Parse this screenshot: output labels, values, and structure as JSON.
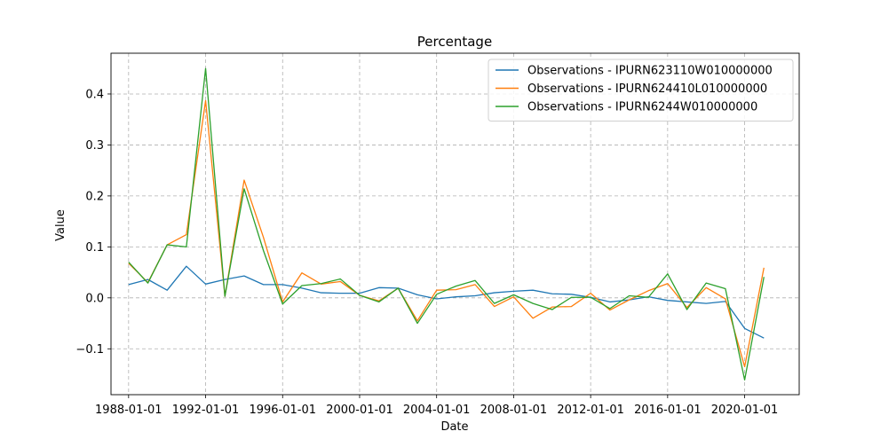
{
  "chart_data": {
    "type": "line",
    "title": "Percentage",
    "xlabel": "Date",
    "ylabel": "Value",
    "x_tick_labels": [
      "1988-01-01",
      "1992-01-01",
      "1996-01-01",
      "2000-01-01",
      "2004-01-01",
      "2008-01-01",
      "2012-01-01",
      "2016-01-01",
      "2020-01-01"
    ],
    "y_ticks": [
      -0.1,
      0.0,
      0.1,
      0.2,
      0.3,
      0.4
    ],
    "y_tick_labels": [
      "−0.1",
      "0.0",
      "0.1",
      "0.2",
      "0.3",
      "0.4"
    ],
    "xlim": [
      "1987-02-01",
      "2022-11-01"
    ],
    "ylim": [
      -0.19,
      0.48
    ],
    "grid": true,
    "legend_position": "top-right",
    "x": [
      "1988-01-01",
      "1989-01-01",
      "1990-01-01",
      "1991-01-01",
      "1992-01-01",
      "1993-01-01",
      "1994-01-01",
      "1995-01-01",
      "1996-01-01",
      "1997-01-01",
      "1998-01-01",
      "1999-01-01",
      "2000-01-01",
      "2001-01-01",
      "2002-01-01",
      "2003-01-01",
      "2004-01-01",
      "2005-01-01",
      "2006-01-01",
      "2007-01-01",
      "2008-01-01",
      "2009-01-01",
      "2010-01-01",
      "2011-01-01",
      "2012-01-01",
      "2013-01-01",
      "2014-01-01",
      "2015-01-01",
      "2016-01-01",
      "2017-01-01",
      "2018-01-01",
      "2019-01-01",
      "2020-01-01",
      "2021-01-01"
    ],
    "series": [
      {
        "name": "Observations - IPURN623110W010000000",
        "color": "#1f77b4",
        "values": [
          0.026,
          0.036,
          0.015,
          0.062,
          0.027,
          0.036,
          0.043,
          0.026,
          0.026,
          0.019,
          0.01,
          0.009,
          0.009,
          0.02,
          0.019,
          0.006,
          -0.002,
          0.002,
          0.004,
          0.01,
          0.013,
          0.015,
          0.008,
          0.007,
          0.001,
          -0.008,
          -0.004,
          0.002,
          -0.005,
          -0.008,
          -0.011,
          -0.007,
          -0.06,
          -0.079
        ]
      },
      {
        "name": "Observations - IPURN624410L010000000",
        "color": "#ff7f0e",
        "values": [
          0.068,
          0.03,
          0.104,
          0.124,
          0.387,
          0.003,
          0.231,
          0.119,
          -0.008,
          0.049,
          0.027,
          0.032,
          0.005,
          -0.006,
          0.019,
          -0.045,
          0.015,
          0.016,
          0.026,
          -0.017,
          0.002,
          -0.04,
          -0.018,
          -0.017,
          0.009,
          -0.024,
          -0.004,
          0.014,
          0.028,
          -0.019,
          0.02,
          -0.002,
          -0.135,
          0.059
        ]
      },
      {
        "name": "Observations - IPURN6244W010000000",
        "color": "#2ca02c",
        "values": [
          0.07,
          0.029,
          0.104,
          0.1,
          0.45,
          0.003,
          0.214,
          0.093,
          -0.012,
          0.024,
          0.028,
          0.037,
          0.005,
          -0.008,
          0.019,
          -0.05,
          0.007,
          0.023,
          0.034,
          -0.011,
          0.006,
          -0.011,
          -0.023,
          0.001,
          0.001,
          -0.021,
          0.004,
          0.001,
          0.047,
          -0.023,
          0.029,
          0.018,
          -0.161,
          0.041
        ]
      }
    ]
  }
}
